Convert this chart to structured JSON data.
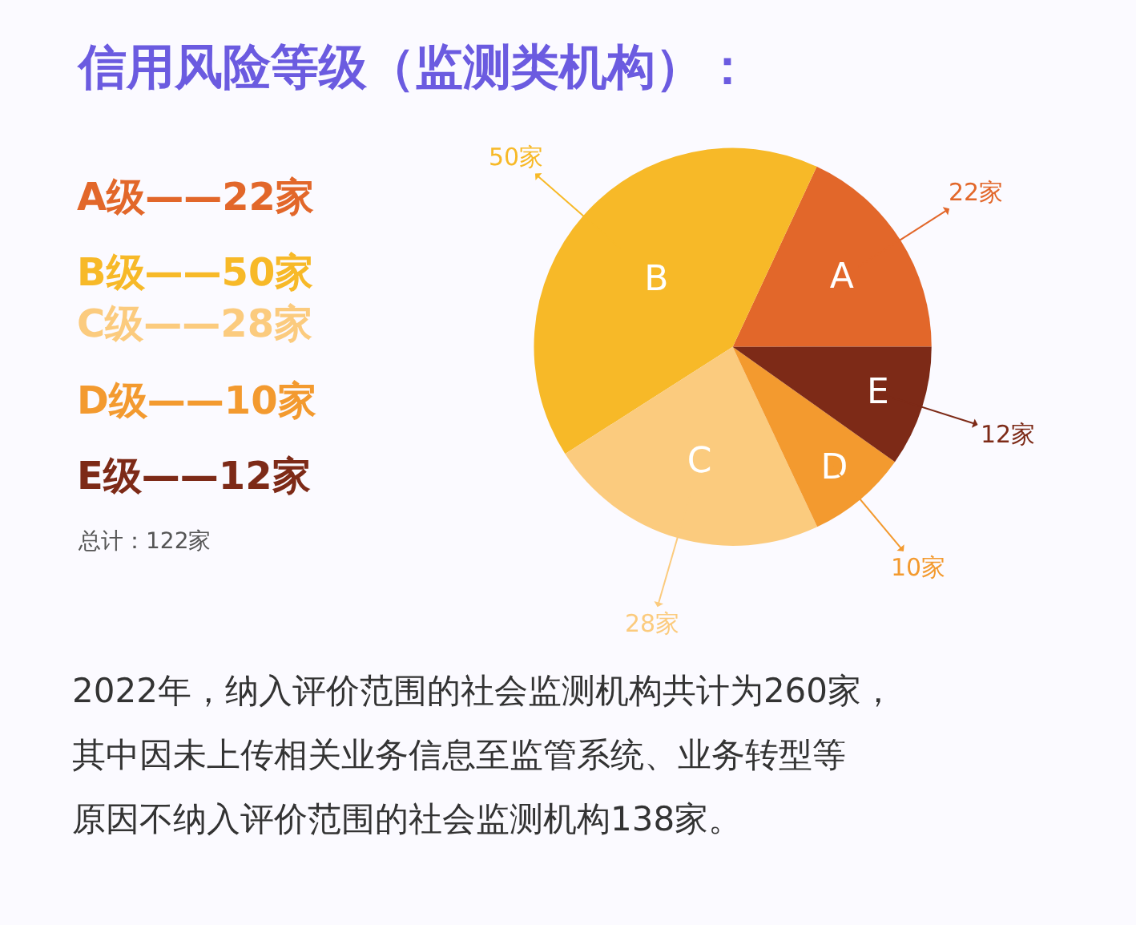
{
  "chart_data": {
    "type": "pie",
    "title": "信用风险等级（监测类机构）：",
    "categories": [
      "A",
      "B",
      "C",
      "D",
      "E"
    ],
    "values": [
      22,
      50,
      28,
      10,
      12
    ],
    "colors": [
      "#e2672a",
      "#f7b928",
      "#fbcb7e",
      "#f39a2f",
      "#7d2a17"
    ],
    "value_labels": [
      "22家",
      "50家",
      "28家",
      "10家",
      "12家"
    ],
    "annotations": [
      "A级——22家",
      "B级——50家",
      "C级——28家",
      "D级——10家",
      "E级——12家",
      "总计：122家",
      "2022年，纳入评价范围的社会监测机构共计为260家，",
      "其中因未上传相关业务信息至监管系统、业务转型等",
      "原因不纳入评价范围的社会监测机构138家。"
    ]
  }
}
